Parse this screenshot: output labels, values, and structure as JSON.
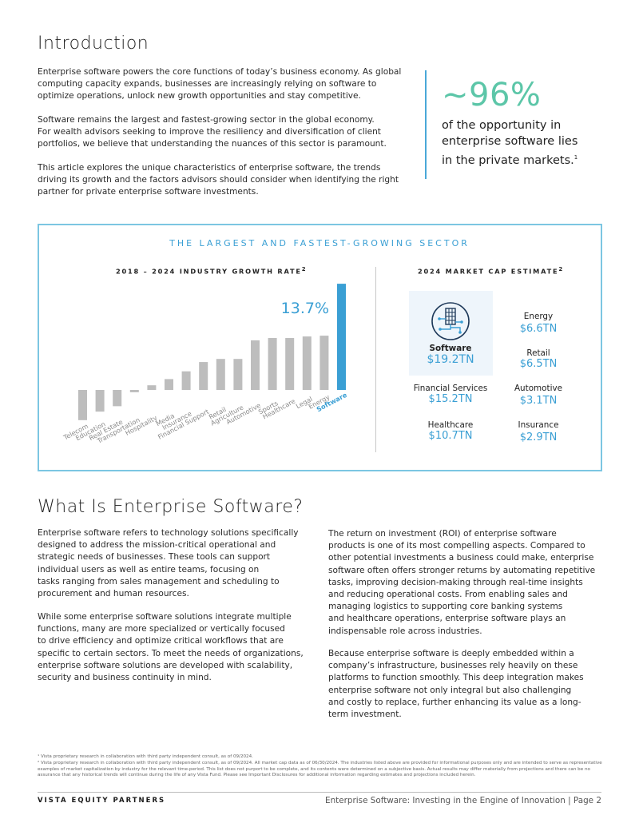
{
  "intro": {
    "heading": "Introduction",
    "p1": "Enterprise software powers the core functions of today’s business economy. As global\ncomputing capacity expands, businesses are increasingly relying on software to\noptimize operations, unlock new growth opportunities and stay competitive.",
    "p2": "Software remains the largest and fastest-growing sector in the global economy.\nFor wealth advisors seeking to improve the resiliency and diversification of client\nportfolios, we believe that understanding the nuances of this sector is paramount.",
    "p3": "This article explores the unique characteristics of enterprise software, the trends\ndriving its growth and the factors advisors should consider when identifying the right\npartner for private enterprise software investments."
  },
  "callout": {
    "big": "~96%",
    "text": "of the opportunity in\nenterprise software lies\nin the private markets.",
    "sup": "1"
  },
  "panel": {
    "title": "THE LARGEST AND FASTEST-GROWING SECTOR",
    "growth_title": "2018 – 2024 INDUSTRY GROWTH RATE",
    "growth_sup": "2",
    "highlight": "13.7%",
    "marketcap_title": "2024 MARKET CAP ESTIMATE",
    "marketcap_sup": "2",
    "marketcap": [
      {
        "label": "Software",
        "value": "$19.2TN"
      },
      {
        "label": "Energy",
        "value": "$6.6TN"
      },
      {
        "label": "Retail",
        "value": "$6.5TN"
      },
      {
        "label": "Financial Services",
        "value": "$15.2TN"
      },
      {
        "label": "Automotive",
        "value": "$3.1TN"
      },
      {
        "label": "Healthcare",
        "value": "$10.7TN"
      },
      {
        "label": "Insurance",
        "value": "$2.9TN"
      }
    ]
  },
  "chart_data": {
    "type": "bar",
    "title": "2018 – 2024 INDUSTRY GROWTH RATE",
    "categories": [
      "Telecom",
      "Education",
      "Real Estate",
      "Transportation",
      "Hospitality",
      "Media",
      "Insurance",
      "Financial Support",
      "Retail",
      "Agriculture",
      "Automotive",
      "Sports",
      "Healthcare",
      "Legal",
      "Energy",
      "Software"
    ],
    "values": [
      -3.9,
      -2.8,
      -2.1,
      -0.3,
      0.6,
      1.4,
      2.4,
      3.6,
      4.0,
      4.0,
      6.4,
      6.7,
      6.7,
      6.9,
      7.0,
      13.7
    ],
    "highlight_category": "Software",
    "highlight_label": "13.7%",
    "colors": {
      "default": "#bdbdbd",
      "highlight": "#3a9fd4"
    },
    "ylim": [
      -4.5,
      14
    ],
    "grid": false,
    "legend": "none"
  },
  "section2": {
    "heading": "What Is Enterprise Software?",
    "left_p1": "Enterprise software refers to technology solutions specifically\ndesigned to address the mission-critical operational and\nstrategic needs of businesses. These tools can support\nindividual users as well as entire teams, focusing on\ntasks ranging from sales management and scheduling to\nprocurement and human resources.",
    "left_p2": "While some enterprise software solutions integrate multiple\nfunctions, many are more specialized or vertically focused\nto drive efficiency and optimize critical workflows that are\nspecific to certain sectors. To meet the needs of organizations,\nenterprise software solutions are developed with scalability,\nsecurity and business continuity in mind.",
    "right_p1": "The return on investment (ROI) of enterprise software\nproducts is one of its most compelling aspects. Compared to\nother potential investments a business could make, enterprise\nsoftware often offers stronger returns by automating repetitive\ntasks, improving decision-making through real-time insights\nand reducing operational costs. From enabling sales and\nmanaging logistics to supporting core banking systems\nand healthcare operations, enterprise software plays an\nindispensable role across industries.",
    "right_p2": "Because enterprise software is deeply embedded within a\ncompany’s infrastructure, businesses rely heavily on these\nplatforms to function smoothly. This deep integration makes\nenterprise software not only integral but also challenging\nand costly to replace, further enhancing its value as a long-\nterm investment."
  },
  "footnotes": {
    "fn1": "¹ Vista proprietary research in collaboration with third party independent consult, as of 09/2024.",
    "fn2": "² Vista proprietary research in collaboration with third party independent consult, as of 09/2024. All market cap data as of 06/30/2024. The industries listed above are provided for informational purposes only and are intended to serve as representative examples of market capitalization by industry for the relevant time-period. This list does not purport to be complete, and its contents were determined on a subjective basis. Actual results may differ materially from projections and there can be no assurance that any historical trends will continue during the life of any Vista Fund. Please see Important Disclosures for additional information regarding estimates and projections included herein."
  },
  "footer": {
    "left": "VISTA EQUITY PARTNERS",
    "right": "Enterprise Software: Investing in the Engine of Innovation  |  Page 2"
  }
}
